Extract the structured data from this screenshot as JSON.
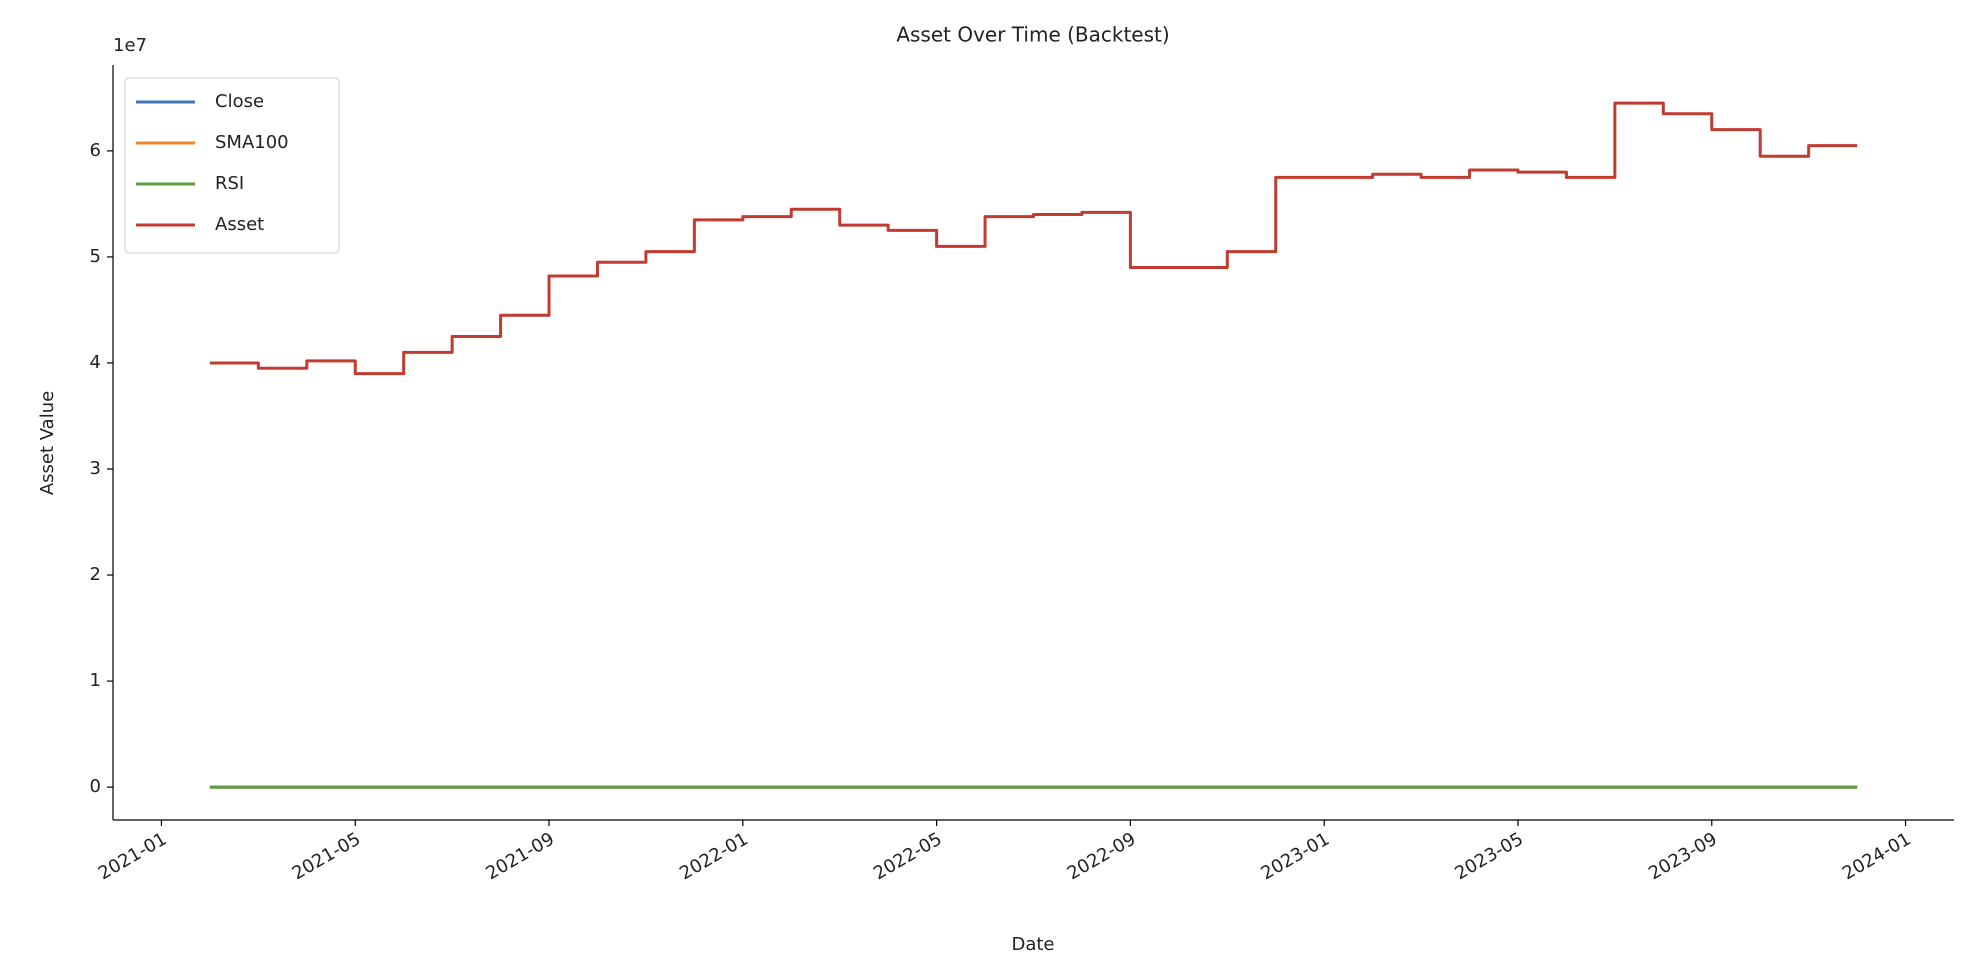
{
  "chart_data": {
    "type": "line",
    "title": "Asset Over Time (Backtest)",
    "x_label": "Date",
    "y_label": "Asset Value",
    "y_offset_label": "1e7",
    "x": [
      "2021-02",
      "2021-03",
      "2021-04",
      "2021-05",
      "2021-06",
      "2021-07",
      "2021-08",
      "2021-09",
      "2021-10",
      "2021-11",
      "2021-12",
      "2022-01",
      "2022-02",
      "2022-03",
      "2022-04",
      "2022-05",
      "2022-06",
      "2022-07",
      "2022-08",
      "2022-09",
      "2022-10",
      "2022-11",
      "2022-12",
      "2023-01",
      "2023-02",
      "2023-03",
      "2023-04",
      "2023-05",
      "2023-06",
      "2023-07",
      "2023-08",
      "2023-09",
      "2023-10",
      "2023-11",
      "2023-12"
    ],
    "series": [
      {
        "name": "Close",
        "color": "#3d76b4",
        "values": [
          0,
          0,
          0,
          0,
          0,
          0,
          0,
          0,
          0,
          0,
          0,
          0,
          0,
          0,
          0,
          0,
          0,
          0,
          0,
          0,
          0,
          0,
          0,
          0,
          0,
          0,
          0,
          0,
          0,
          0,
          0,
          0,
          0,
          0,
          0
        ]
      },
      {
        "name": "SMA100",
        "color": "#f0862f",
        "values": [
          0,
          0,
          0,
          0,
          0,
          0,
          0,
          0,
          0,
          0,
          0,
          0,
          0,
          0,
          0,
          0,
          0,
          0,
          0,
          0,
          0,
          0,
          0,
          0,
          0,
          0,
          0,
          0,
          0,
          0,
          0,
          0,
          0,
          0,
          0
        ]
      },
      {
        "name": "RSI",
        "color": "#5a9f3f",
        "values": [
          0,
          0,
          0,
          0,
          0,
          0,
          0,
          0,
          0,
          0,
          0,
          0,
          0,
          0,
          0,
          0,
          0,
          0,
          0,
          0,
          0,
          0,
          0,
          0,
          0,
          0,
          0,
          0,
          0,
          0,
          0,
          0,
          0,
          0,
          0
        ]
      },
      {
        "name": "Asset",
        "color": "#c23b30",
        "values": [
          4.0,
          3.95,
          4.02,
          3.9,
          4.1,
          4.25,
          4.45,
          4.82,
          4.95,
          5.05,
          5.35,
          5.38,
          5.45,
          5.3,
          5.25,
          5.1,
          5.38,
          5.4,
          5.42,
          4.9,
          4.9,
          5.05,
          5.75,
          5.75,
          5.78,
          5.75,
          5.82,
          5.8,
          5.75,
          6.45,
          6.35,
          6.2,
          5.95,
          6.05,
          6.05
        ]
      }
    ],
    "xlim": [
      "2020-12",
      "2024-02"
    ],
    "xticks": [
      "2021-01",
      "2021-05",
      "2021-09",
      "2022-01",
      "2022-05",
      "2022-09",
      "2023-01",
      "2023-05",
      "2023-09",
      "2024-01"
    ],
    "ylim": [
      -0.31,
      6.81
    ],
    "yticks": [
      0,
      1,
      2,
      3,
      4,
      5,
      6
    ],
    "legend": "upper left",
    "grid": false
  }
}
